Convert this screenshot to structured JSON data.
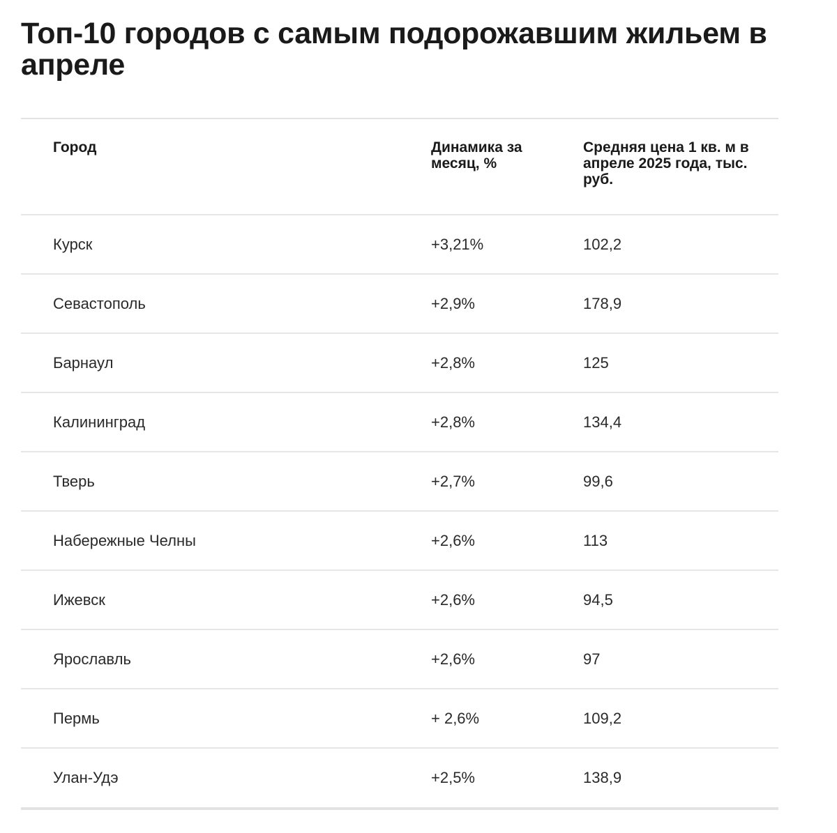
{
  "title": "Топ-10 городов с самым подорожавшим жильем в апреле",
  "table": {
    "headers": {
      "city": "Город",
      "change": "Динамика за месяц, %",
      "price": "Средняя цена 1 кв. м в апреле 2025 года, тыс. руб."
    },
    "rows": [
      {
        "city": "Курск",
        "change": "+3,21%",
        "price": "102,2"
      },
      {
        "city": "Севастополь",
        "change": "+2,9%",
        "price": "178,9"
      },
      {
        "city": "Барнаул",
        "change": "+2,8%",
        "price": "125"
      },
      {
        "city": "Калининград",
        "change": "+2,8%",
        "price": "134,4"
      },
      {
        "city": "Тверь",
        "change": "+2,7%",
        "price": "99,6"
      },
      {
        "city": "Набережные Челны",
        "change": "+2,6%",
        "price": "113"
      },
      {
        "city": "Ижевск",
        "change": "+2,6%",
        "price": "94,5"
      },
      {
        "city": "Ярославль",
        "change": "+2,6%",
        "price": "97"
      },
      {
        "city": "Пермь",
        "change": "+ 2,6%",
        "price": "109,2"
      },
      {
        "city": "Улан-Удэ",
        "change": "+2,5%",
        "price": "138,9"
      }
    ]
  }
}
